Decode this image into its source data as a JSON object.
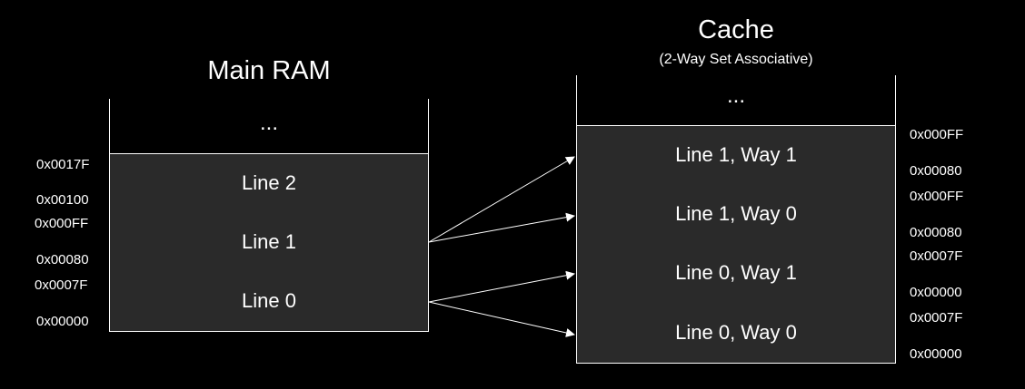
{
  "main_ram": {
    "title": "Main RAM",
    "ellipsis": "...",
    "lines": [
      {
        "label": "Line 2",
        "addr_high": "0x0017F",
        "addr_low": "0x00100"
      },
      {
        "label": "Line 1",
        "addr_high": "0x000FF",
        "addr_low": "0x00080"
      },
      {
        "label": "Line 0",
        "addr_high": "0x0007F",
        "addr_low": "0x00000"
      }
    ]
  },
  "cache": {
    "title": "Cache",
    "subtitle": "(2-Way Set Associative)",
    "ellipsis": "...",
    "lines": [
      {
        "label": "Line 1, Way 1",
        "addr_high": "0x000FF",
        "addr_low": "0x00080"
      },
      {
        "label": "Line 1, Way 0",
        "addr_high": "0x000FF",
        "addr_low": "0x00080"
      },
      {
        "label": "Line 0, Way 1",
        "addr_high": "0x0007F",
        "addr_low": "0x00000"
      },
      {
        "label": "Line 0, Way 0",
        "addr_high": "0x0007F",
        "addr_low": "0x00000"
      }
    ]
  },
  "colors": {
    "background": "#000000",
    "cell_fill": "#2a2a2a",
    "stroke": "#ffffff"
  }
}
